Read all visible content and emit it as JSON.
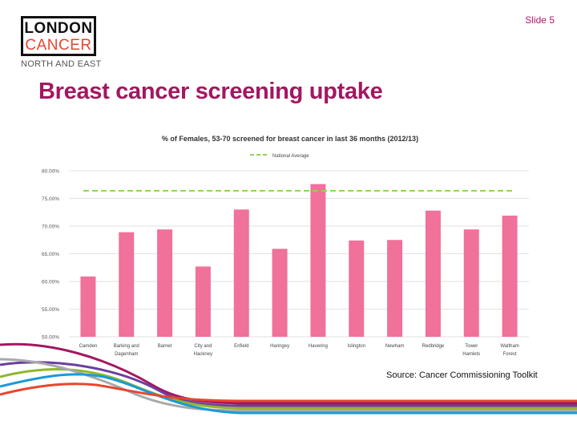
{
  "slide": {
    "logo_line1": "LONDON",
    "logo_line2": "CANCER",
    "logo_sub": "NORTH AND EAST",
    "slide_number": "Slide 5",
    "title": "Breast cancer screening uptake",
    "source": "Source: Cancer Commissioning Toolkit",
    "colors": {
      "title": "#a3175f",
      "bar": "#f0719a",
      "average_line": "#8fd35a",
      "logo_accent": "#e8452f"
    }
  },
  "chart_data": {
    "type": "bar",
    "title": "% of Females, 53-70 screened for breast cancer in last 36 months (2012/13)",
    "categories": [
      [
        "Camden"
      ],
      [
        "Barking and",
        "Dagenham"
      ],
      [
        "Barnet"
      ],
      [
        "City and",
        "Hackney"
      ],
      [
        "Enfield"
      ],
      [
        "Haringey"
      ],
      [
        "Havering"
      ],
      [
        "Islington"
      ],
      [
        "Newham"
      ],
      [
        "Redbridge"
      ],
      [
        "Tower",
        "Hamlets"
      ],
      [
        "Waltham",
        "Forest"
      ]
    ],
    "values": [
      60.9,
      68.9,
      69.4,
      62.7,
      73.0,
      65.9,
      77.6,
      67.4,
      67.5,
      72.8,
      69.4,
      71.9
    ],
    "reference_line": {
      "name": "National Average",
      "value": 76.4
    },
    "ylim": [
      50,
      80
    ],
    "yticks": [
      "50.00%",
      "55.00%",
      "60.00%",
      "65.00%",
      "70.00%",
      "75.00%",
      "80.00%"
    ],
    "grid": true,
    "legend": "top-center"
  }
}
